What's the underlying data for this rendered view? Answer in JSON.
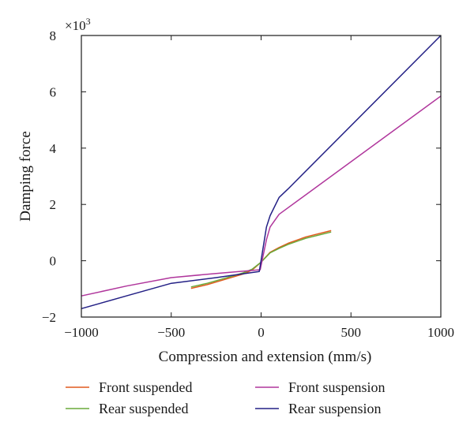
{
  "chart_data": {
    "type": "line",
    "title": "",
    "xlabel": "Compression and extension (mm/s)",
    "ylabel": "Damping force",
    "y_multiplier_label": "×10",
    "y_multiplier_exponent": "3",
    "xlim": [
      -1000,
      1000
    ],
    "ylim": [
      -2,
      8
    ],
    "xticks": [
      -1000,
      -500,
      0,
      500,
      1000
    ],
    "yticks": [
      -2,
      0,
      2,
      4,
      6,
      8
    ],
    "xtick_labels": [
      "−1000",
      "−500",
      "0",
      "500",
      "1000"
    ],
    "ytick_labels": [
      "−2",
      "0",
      "2",
      "4",
      "6",
      "8"
    ],
    "grid": false,
    "legend_placement": "bottom",
    "series": [
      {
        "name": "Front suspended",
        "color": "#e05a1e",
        "x": [
          -390,
          -300,
          -200,
          -100,
          -50,
          0,
          50,
          100,
          150,
          250,
          390
        ],
        "y": [
          -0.98,
          -0.85,
          -0.66,
          -0.47,
          -0.33,
          -0.05,
          0.3,
          0.47,
          0.62,
          0.85,
          1.07
        ]
      },
      {
        "name": "Rear suspended",
        "color": "#6aaa3a",
        "x": [
          -390,
          -300,
          -200,
          -100,
          -50,
          0,
          50,
          100,
          150,
          250,
          390
        ],
        "y": [
          -0.93,
          -0.8,
          -0.62,
          -0.43,
          -0.3,
          -0.05,
          0.28,
          0.44,
          0.58,
          0.8,
          1.02
        ]
      },
      {
        "name": "Front suspension",
        "color": "#b0369c",
        "x": [
          -1000,
          -750,
          -500,
          -250,
          -5,
          30,
          50,
          100,
          1000
        ],
        "y": [
          -1.25,
          -0.9,
          -0.6,
          -0.45,
          -0.32,
          0.75,
          1.2,
          1.65,
          5.85
        ]
      },
      {
        "name": "Rear suspension",
        "color": "#232085",
        "x": [
          -1000,
          -750,
          -500,
          -250,
          -10,
          30,
          50,
          100,
          150,
          1000
        ],
        "y": [
          -1.7,
          -1.25,
          -0.8,
          -0.6,
          -0.38,
          1.2,
          1.6,
          2.25,
          2.55,
          8.0
        ]
      }
    ]
  }
}
